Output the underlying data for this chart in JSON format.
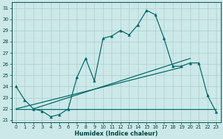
{
  "xlabel": "Humidex (Indice chaleur)",
  "bg_color": "#cce8e8",
  "line_color": "#006666",
  "grid_color": "#aacccc",
  "xlim": [
    -0.5,
    23.5
  ],
  "ylim": [
    20.8,
    31.5
  ],
  "yticks": [
    21,
    22,
    23,
    24,
    25,
    26,
    27,
    28,
    29,
    30,
    31
  ],
  "xticks": [
    0,
    1,
    2,
    3,
    4,
    5,
    6,
    7,
    8,
    9,
    10,
    11,
    12,
    13,
    14,
    15,
    16,
    17,
    18,
    19,
    20,
    21,
    22,
    23
  ],
  "main_y": [
    24.0,
    22.8,
    22.0,
    21.8,
    21.3,
    21.5,
    22.0,
    24.8,
    26.5,
    24.5,
    28.3,
    28.5,
    29.0,
    28.6,
    29.5,
    30.8,
    30.4,
    28.3,
    25.8,
    25.8,
    26.1,
    26.1,
    23.2,
    21.7
  ],
  "flat_line": [
    [
      0,
      23
    ],
    [
      22.0,
      22.0
    ]
  ],
  "rise1_line": [
    [
      0,
      19
    ],
    [
      22.0,
      25.7
    ]
  ],
  "rise2_line": [
    [
      2,
      20
    ],
    [
      22.0,
      26.5
    ]
  ]
}
